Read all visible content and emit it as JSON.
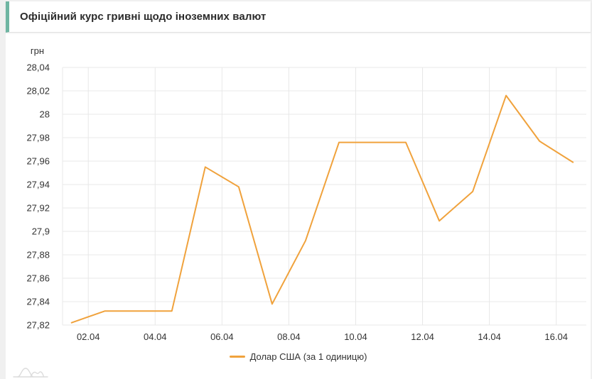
{
  "page": {
    "title": "Офіційний курс гривні щодо іноземних валют",
    "unit_label": "грн",
    "legend": {
      "usd_label": "Долар США (за 1 одиницю)"
    },
    "colors": {
      "accent_teal": "#6fb5a2",
      "line_orange": "#f0a23c",
      "grid": "#e8e8e8",
      "axis_text": "#333333",
      "page_bg": "#f0f0f0",
      "card_bg": "#ffffff",
      "watermark_gray": "#dcdcdc"
    }
  },
  "chart_data": {
    "type": "line",
    "title": "Офіційний курс гривні щодо іноземних валют",
    "xlabel": "",
    "ylabel": "грн",
    "ylim": [
      27.82,
      28.04
    ],
    "x_range_days": [
      0.23,
      15.9
    ],
    "grid": true,
    "legend_position": "bottom",
    "y_tick_labels": [
      "27,82",
      "27,84",
      "27,86",
      "27,88",
      "27,9",
      "27,92",
      "27,94",
      "27,96",
      "27,98",
      "28",
      "28,02",
      "28,04"
    ],
    "y_tick_values": [
      27.82,
      27.84,
      27.86,
      27.88,
      27.9,
      27.92,
      27.94,
      27.96,
      27.98,
      28.0,
      28.02,
      28.04
    ],
    "x_tick_labels": [
      "02.04",
      "04.04",
      "06.04",
      "08.04",
      "10.04",
      "12.04",
      "14.04",
      "16.04"
    ],
    "x_tick_days": [
      1,
      3,
      5,
      7,
      9,
      11,
      13,
      15
    ],
    "series": [
      {
        "name": "Долар США (за 1 одиницю)",
        "color": "#f0a23c",
        "dates": [
          "01.04",
          "02.04",
          "03.04",
          "04.04",
          "05.04",
          "06.04",
          "07.04",
          "08.04",
          "09.04",
          "10.04",
          "11.04",
          "12.04",
          "13.04",
          "14.04",
          "15.04",
          "16.04"
        ],
        "x_days": [
          0.5,
          1.5,
          2.5,
          3.5,
          4.5,
          5.5,
          6.5,
          7.5,
          8.5,
          9.5,
          10.5,
          11.5,
          12.5,
          13.5,
          14.5,
          15.5
        ],
        "values": [
          27.822,
          27.832,
          27.832,
          27.832,
          27.955,
          27.938,
          27.838,
          27.892,
          27.976,
          27.976,
          27.976,
          27.909,
          27.934,
          28.016,
          27.977,
          27.959
        ]
      }
    ]
  }
}
